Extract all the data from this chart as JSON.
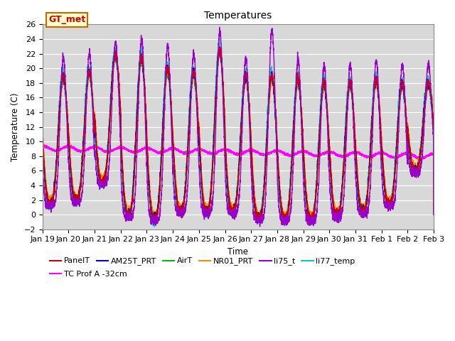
{
  "title": "Temperatures",
  "xlabel": "Time",
  "ylabel": "Temperature (C)",
  "ylim": [
    -2,
    26
  ],
  "yticks": [
    -2,
    0,
    2,
    4,
    6,
    8,
    10,
    12,
    14,
    16,
    18,
    20,
    22,
    24,
    26
  ],
  "bg_color": "#d8d8d8",
  "series": {
    "PanelT": {
      "color": "#cc0000",
      "lw": 1.0
    },
    "AM25T_PRT": {
      "color": "#0000cc",
      "lw": 1.0
    },
    "AirT": {
      "color": "#00bb00",
      "lw": 1.0
    },
    "NR01_PRT": {
      "color": "#ff8800",
      "lw": 1.0
    },
    "li75_t": {
      "color": "#9900cc",
      "lw": 1.0
    },
    "li77_temp": {
      "color": "#00cccc",
      "lw": 1.0
    },
    "TC Prof A -32cm": {
      "color": "#ff00ff",
      "lw": 1.2
    }
  },
  "annotation_text": "GT_met",
  "annotation_bg": "#ffffcc",
  "annotation_edge": "#cc6600",
  "annotation_fg": "#cc0000",
  "n_days": 15,
  "start_day": 19,
  "pts_per_day": 288,
  "figsize": [
    6.4,
    4.8
  ],
  "dpi": 100
}
